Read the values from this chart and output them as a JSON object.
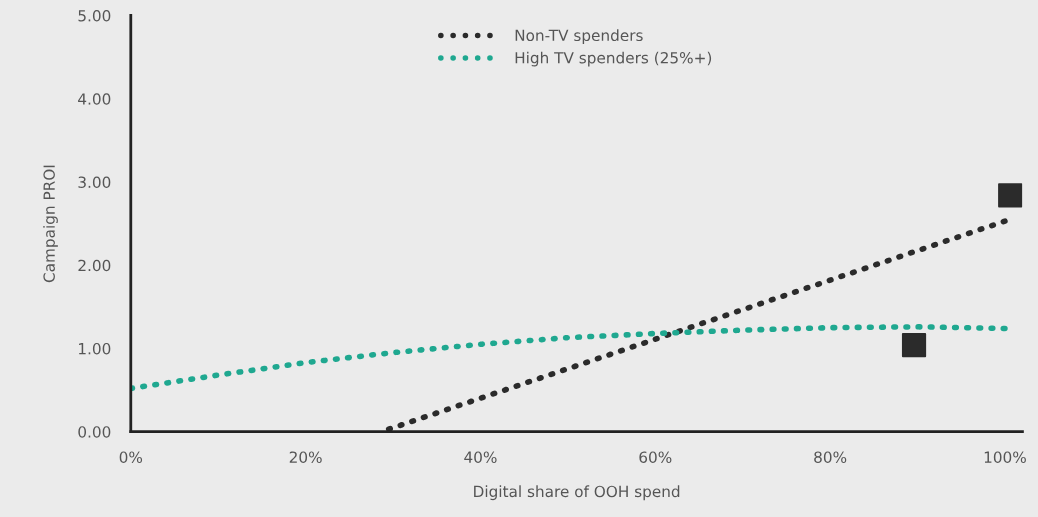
{
  "chart_data": {
    "type": "line",
    "xlabel": "Digital share of OOH spend",
    "ylabel": "Campaign PROI",
    "series": [
      {
        "name": "Non-TV spenders",
        "color": "#2b2b2b",
        "x": [
          29.5,
          100
        ],
        "values": [
          0.03,
          2.53
        ],
        "line_style": "dotted"
      },
      {
        "name": "High TV spenders (25%+)",
        "color": "#1fa890",
        "x": [
          0,
          10,
          20,
          30,
          40,
          50,
          60,
          70,
          80,
          90,
          100
        ],
        "values": [
          0.52,
          0.68,
          0.83,
          0.95,
          1.05,
          1.13,
          1.18,
          1.22,
          1.25,
          1.26,
          1.24
        ],
        "line_style": "dotted"
      },
      {
        "type": "scatter",
        "color": "#2b2b2b",
        "marker": "square",
        "x": [
          89.6,
          100.6
        ],
        "values": [
          1.04,
          2.84
        ]
      }
    ],
    "xlim": [
      0,
      102
    ],
    "ylim": [
      0,
      5
    ],
    "xticks": [
      {
        "value": 0,
        "label": "0%"
      },
      {
        "value": 20,
        "label": "20%"
      },
      {
        "value": 40,
        "label": "40%"
      },
      {
        "value": 60,
        "label": "60%"
      },
      {
        "value": 80,
        "label": "80%"
      },
      {
        "value": 100,
        "label": "100%"
      }
    ],
    "yticks": [
      {
        "value": 0,
        "label": "0.00"
      },
      {
        "value": 1,
        "label": "1.00"
      },
      {
        "value": 2,
        "label": "2.00"
      },
      {
        "value": 3,
        "label": "3.00"
      },
      {
        "value": 4,
        "label": "4.00"
      },
      {
        "value": 5,
        "label": "5.00"
      }
    ],
    "grid": false,
    "legend": "top"
  }
}
